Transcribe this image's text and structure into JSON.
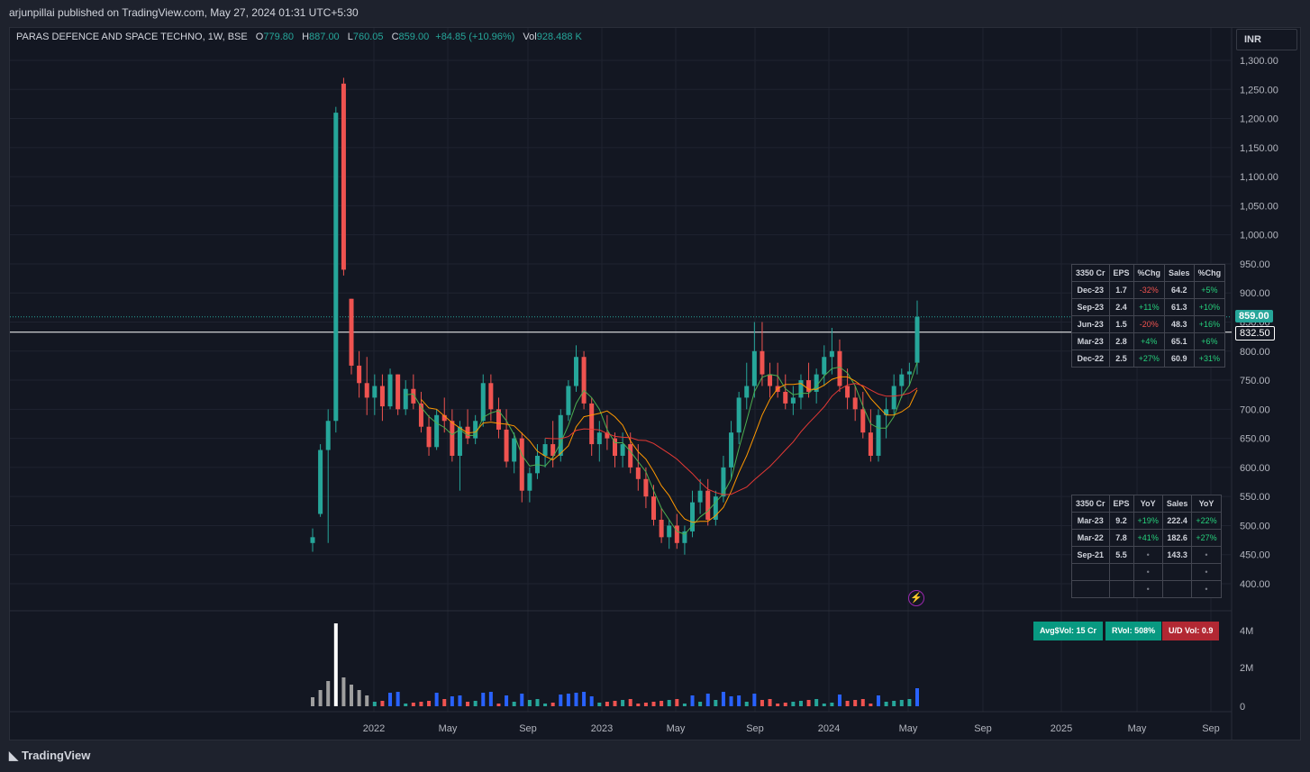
{
  "header": {
    "publisher": "arjunpillai published on TradingView.com, May 27, 2024 01:31 UTC+5:30"
  },
  "legend": {
    "symbol": "PARAS DEFENCE AND SPACE TECHNO, 1W, BSE",
    "open_k": "O",
    "open": "779.80",
    "high_k": "H",
    "high": "887.00",
    "low_k": "L",
    "low": "760.05",
    "close_k": "C",
    "close": "859.00",
    "change": "+84.85 (+10.96%)",
    "vol_k": "Vol",
    "vol": "928.488 K"
  },
  "currency": "INR",
  "price_labels": {
    "last": "859.00",
    "line": "832.50"
  },
  "colors": {
    "up": "#26a69a",
    "down": "#ef5350",
    "ma_fast": "#4caf50",
    "ma_mid": "#ff9800",
    "ma_slow": "#e53935",
    "vol_high": "#2962ff"
  },
  "quarterly_table": {
    "headers": [
      "3350 Cr",
      "EPS",
      "%Chg",
      "Sales",
      "%Chg"
    ],
    "rows": [
      [
        "Dec-23",
        "1.7",
        "-32%",
        "64.2",
        "+5%"
      ],
      [
        "Sep-23",
        "2.4",
        "+11%",
        "61.3",
        "+10%"
      ],
      [
        "Jun-23",
        "1.5",
        "-20%",
        "48.3",
        "+16%"
      ],
      [
        "Mar-23",
        "2.8",
        "+4%",
        "65.1",
        "+6%"
      ],
      [
        "Dec-22",
        "2.5",
        "+27%",
        "60.9",
        "+31%"
      ]
    ]
  },
  "annual_table": {
    "headers": [
      "3350 Cr",
      "EPS",
      "YoY",
      "Sales",
      "YoY"
    ],
    "rows": [
      [
        "Mar-23",
        "9.2",
        "+19%",
        "222.4",
        "+22%"
      ],
      [
        "Mar-22",
        "7.8",
        "+41%",
        "182.6",
        "+27%"
      ],
      [
        "Sep-21",
        "5.5",
        "•",
        "143.3",
        "•"
      ],
      [
        "",
        "",
        "•",
        "",
        "•"
      ],
      [
        "",
        "",
        "•",
        "",
        "•"
      ]
    ]
  },
  "badges": {
    "avg": "Avg$Vol: 15 Cr",
    "rvol": "RVol: 508%",
    "ud": "U/D Vol: 0.9"
  },
  "brand": "TradingView",
  "chart_data": {
    "type": "candlestick",
    "y_ticks": [
      "1,300.00",
      "1,250.00",
      "1,200.00",
      "1,150.00",
      "1,100.00",
      "1,050.00",
      "1,000.00",
      "950.00",
      "900.00",
      "850.00",
      "800.00",
      "750.00",
      "700.00",
      "650.00",
      "600.00",
      "550.00",
      "500.00",
      "450.00",
      "400.00"
    ],
    "ylim": [
      370,
      1315
    ],
    "x_ticks": [
      "2022",
      "May",
      "Sep",
      "2023",
      "May",
      "Sep",
      "2024",
      "May",
      "Sep",
      "2025",
      "May",
      "Sep"
    ],
    "volume_ticks": [
      "4M",
      "2M",
      "0"
    ],
    "candles": [
      [
        470,
        495,
        455,
        480
      ],
      [
        520,
        640,
        515,
        630
      ],
      [
        630,
        700,
        470,
        680
      ],
      [
        680,
        1220,
        660,
        1210
      ],
      [
        1260,
        1270,
        930,
        940
      ],
      [
        890,
        890,
        760,
        775
      ],
      [
        775,
        800,
        720,
        745
      ],
      [
        745,
        790,
        690,
        720
      ],
      [
        720,
        760,
        690,
        740
      ],
      [
        740,
        760,
        680,
        705
      ],
      [
        705,
        770,
        700,
        760
      ],
      [
        760,
        760,
        690,
        700
      ],
      [
        700,
        750,
        690,
        735
      ],
      [
        735,
        760,
        700,
        710
      ],
      [
        710,
        730,
        660,
        670
      ],
      [
        670,
        690,
        620,
        635
      ],
      [
        635,
        700,
        630,
        690
      ],
      [
        690,
        720,
        660,
        680
      ],
      [
        680,
        700,
        610,
        620
      ],
      [
        620,
        680,
        560,
        670
      ],
      [
        670,
        700,
        640,
        650
      ],
      [
        650,
        690,
        640,
        680
      ],
      [
        680,
        760,
        670,
        745
      ],
      [
        745,
        760,
        680,
        700
      ],
      [
        700,
        720,
        650,
        665
      ],
      [
        665,
        700,
        600,
        610
      ],
      [
        610,
        660,
        590,
        650
      ],
      [
        650,
        660,
        540,
        560
      ],
      [
        560,
        600,
        540,
        590
      ],
      [
        590,
        640,
        580,
        620
      ],
      [
        620,
        650,
        600,
        640
      ],
      [
        640,
        680,
        600,
        620
      ],
      [
        620,
        700,
        610,
        690
      ],
      [
        690,
        750,
        680,
        740
      ],
      [
        740,
        810,
        730,
        790
      ],
      [
        790,
        800,
        700,
        710
      ],
      [
        710,
        720,
        620,
        640
      ],
      [
        640,
        680,
        610,
        660
      ],
      [
        660,
        690,
        630,
        650
      ],
      [
        650,
        660,
        600,
        620
      ],
      [
        620,
        660,
        600,
        640
      ],
      [
        640,
        660,
        590,
        600
      ],
      [
        600,
        640,
        560,
        580
      ],
      [
        580,
        600,
        530,
        550
      ],
      [
        550,
        570,
        500,
        510
      ],
      [
        510,
        530,
        470,
        480
      ],
      [
        480,
        510,
        460,
        500
      ],
      [
        500,
        520,
        460,
        470
      ],
      [
        470,
        500,
        450,
        490
      ],
      [
        490,
        560,
        480,
        540
      ],
      [
        540,
        580,
        520,
        560
      ],
      [
        560,
        580,
        500,
        510
      ],
      [
        510,
        560,
        500,
        550
      ],
      [
        550,
        620,
        540,
        600
      ],
      [
        600,
        680,
        580,
        660
      ],
      [
        660,
        730,
        640,
        720
      ],
      [
        720,
        780,
        700,
        740
      ],
      [
        740,
        850,
        720,
        800
      ],
      [
        800,
        850,
        740,
        760
      ],
      [
        760,
        780,
        720,
        740
      ],
      [
        740,
        780,
        720,
        730
      ],
      [
        730,
        760,
        700,
        710
      ],
      [
        710,
        740,
        690,
        720
      ],
      [
        720,
        760,
        700,
        750
      ],
      [
        750,
        780,
        720,
        730
      ],
      [
        730,
        770,
        710,
        760
      ],
      [
        760,
        810,
        740,
        790
      ],
      [
        790,
        840,
        760,
        800
      ],
      [
        800,
        820,
        730,
        740
      ],
      [
        740,
        770,
        700,
        720
      ],
      [
        720,
        740,
        680,
        700
      ],
      [
        700,
        730,
        650,
        660
      ],
      [
        660,
        700,
        610,
        620
      ],
      [
        620,
        700,
        610,
        690
      ],
      [
        690,
        720,
        650,
        700
      ],
      [
        700,
        760,
        690,
        740
      ],
      [
        740,
        770,
        720,
        760
      ],
      [
        760,
        780,
        740,
        765
      ],
      [
        780,
        887,
        760,
        859
      ]
    ]
  }
}
